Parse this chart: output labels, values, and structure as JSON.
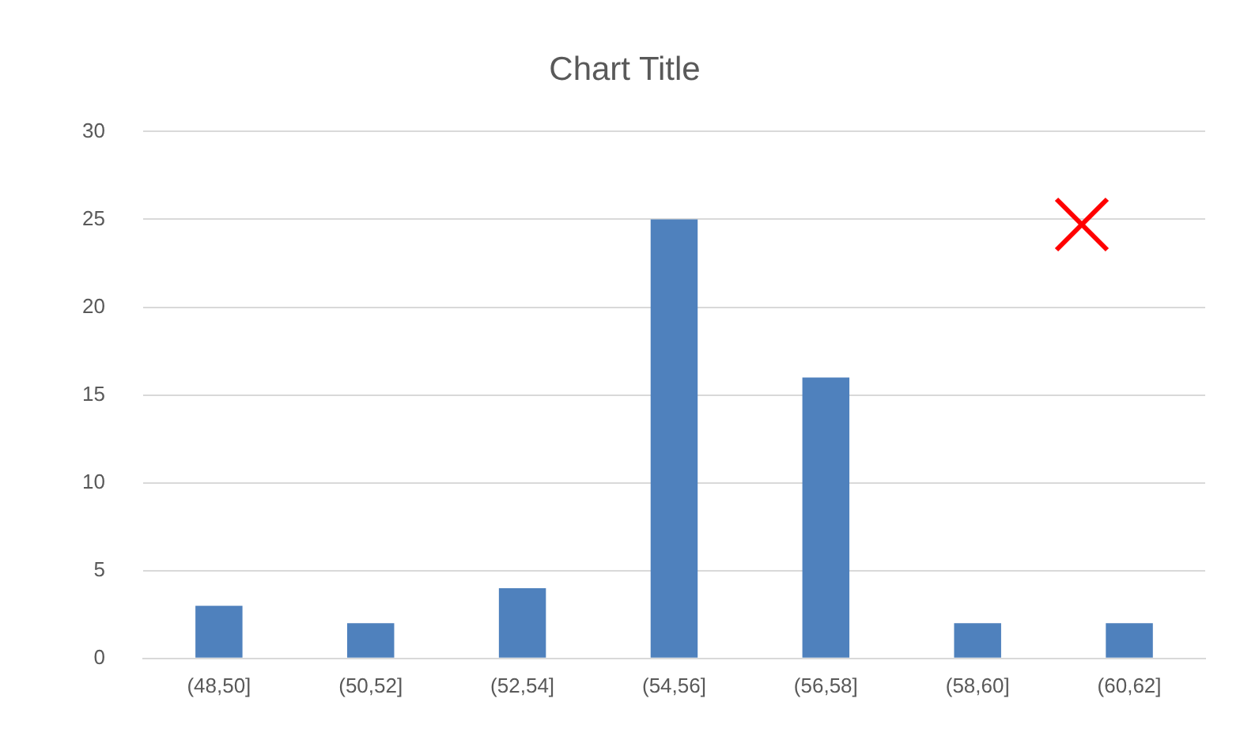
{
  "chart_data": {
    "type": "bar",
    "title": "Chart Title",
    "categories": [
      "(48,50]",
      "(50,52]",
      "(52,54]",
      "(54,56]",
      "(56,58]",
      "(58,60]",
      "(60,62]"
    ],
    "values": [
      3,
      2,
      4,
      25,
      16,
      2,
      2
    ],
    "color": "#4f81bd",
    "ylim": [
      0,
      30
    ],
    "yticks": [
      0,
      5,
      10,
      15,
      20,
      25,
      30
    ],
    "grid": "y"
  }
}
